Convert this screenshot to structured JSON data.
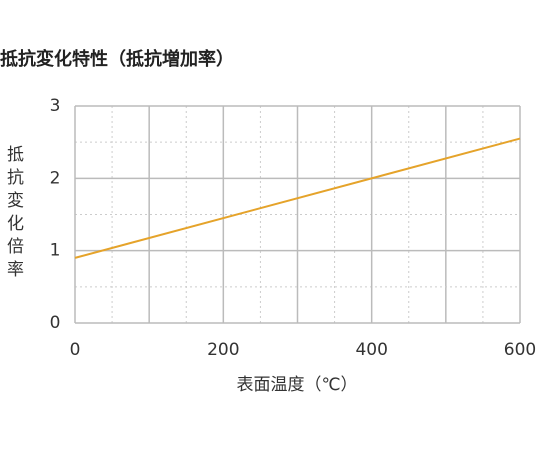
{
  "chart_data": {
    "type": "line",
    "title": "抵抗変化特性（抵抗増加率）",
    "x_label": "表面温度（℃）",
    "y_label": "抵抗変化倍率",
    "x": [
      0,
      600
    ],
    "series": [
      {
        "name": "抵抗変化倍率",
        "color": "#e5a32a",
        "values": [
          0.9,
          2.55
        ]
      }
    ],
    "xlim": [
      0,
      600
    ],
    "xticks": [
      0,
      200,
      400,
      600
    ],
    "ylim": [
      0,
      3
    ],
    "yticks": [
      0,
      1,
      2,
      3
    ],
    "grid": true
  }
}
